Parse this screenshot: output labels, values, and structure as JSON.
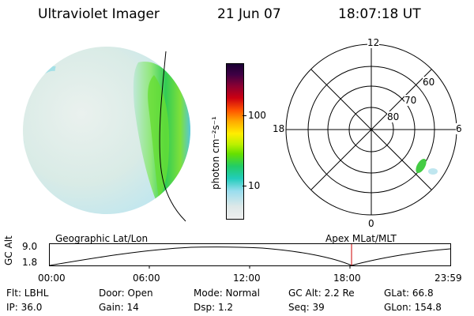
{
  "header": {
    "instrument": "Ultraviolet Imager",
    "date": "21 Jun 07",
    "time": "18:07:18 UT"
  },
  "colorbar": {
    "label": "photon cm⁻²s⁻¹",
    "ticks": [
      "100",
      "10"
    ]
  },
  "polar_plot": {
    "mlt_labels": {
      "top": "12",
      "left": "18",
      "right": "6",
      "bottom": "0"
    },
    "lat_labels": [
      "60",
      "70",
      "80"
    ]
  },
  "timeline": {
    "left_caption": "Geographic Lat/Lon",
    "right_caption": "Apex MLat/MLT",
    "y_axis_label": "GC Alt",
    "y_ticks": [
      "9.0",
      "1.8"
    ],
    "x_ticks": [
      "00:00",
      "06:00",
      "12:00",
      "18:00",
      "23:59"
    ],
    "marker_time": "18:07",
    "marker_color": "#cc0000"
  },
  "info_grid": {
    "row1": [
      "Flt: LBHL",
      "Door: Open",
      "Mode: Normal",
      "GC Alt: 2.2 Re",
      "GLat:  66.8"
    ],
    "row2": [
      "IP: 36.0",
      "Gain: 14",
      "Dsp:    1.2",
      "Seq: 39",
      "GLon: 154.8"
    ]
  }
}
